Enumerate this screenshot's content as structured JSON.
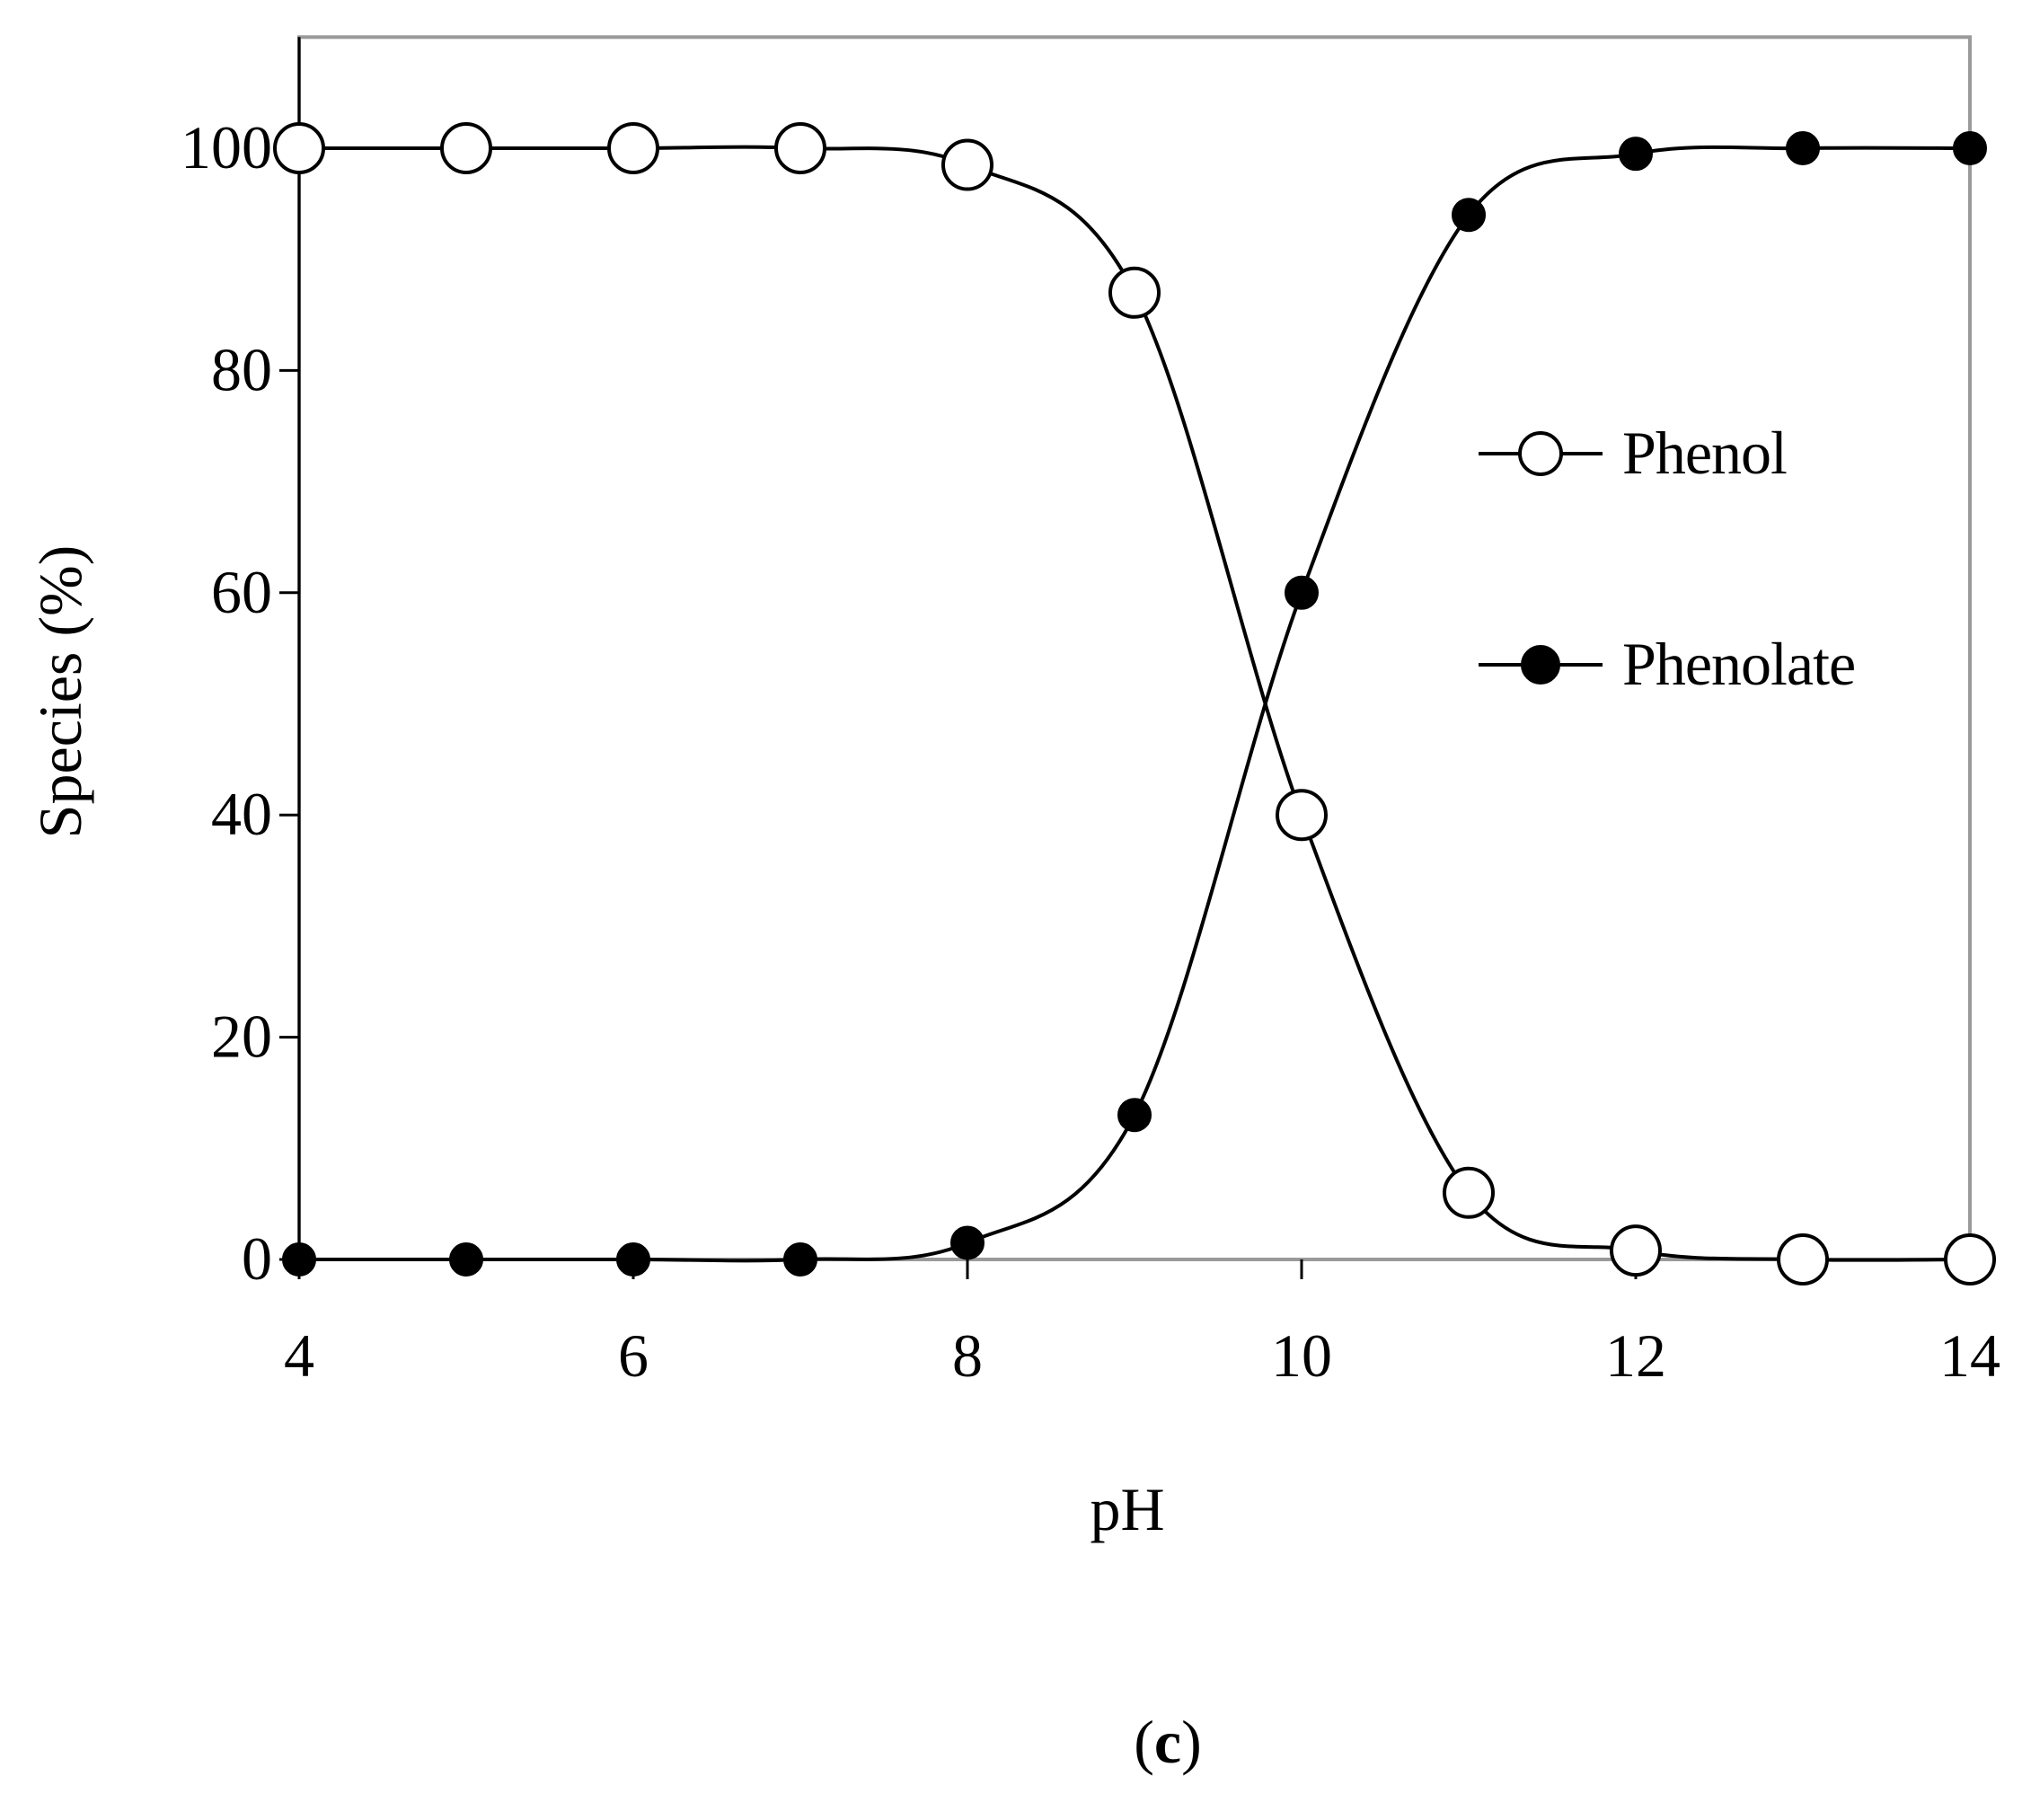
{
  "panel_label_prefix": "(",
  "panel_label_letter": "c",
  "panel_label_suffix": ")",
  "chart_data": {
    "type": "line",
    "title": "",
    "xlabel": "pH",
    "ylabel": "Species (%)",
    "xlim": [
      4,
      14
    ],
    "ylim": [
      0,
      110
    ],
    "x_ticks": [
      4,
      6,
      8,
      10,
      12,
      14
    ],
    "y_ticks": [
      0,
      20,
      40,
      60,
      80,
      100
    ],
    "legend_position": "right-middle",
    "grid": false,
    "series": [
      {
        "name": "Phenol",
        "marker": "open-circle",
        "color": "#000000",
        "points": [
          {
            "x": 4,
            "y": 100
          },
          {
            "x": 5,
            "y": 100
          },
          {
            "x": 6,
            "y": 100
          },
          {
            "x": 7,
            "y": 100
          },
          {
            "x": 8,
            "y": 98.5
          },
          {
            "x": 9,
            "y": 87
          },
          {
            "x": 10,
            "y": 40
          },
          {
            "x": 11,
            "y": 6
          },
          {
            "x": 12,
            "y": 0.8
          },
          {
            "x": 13,
            "y": 0
          },
          {
            "x": 14,
            "y": 0
          }
        ]
      },
      {
        "name": "Phenolate",
        "marker": "filled-circle",
        "color": "#000000",
        "points": [
          {
            "x": 4,
            "y": 0
          },
          {
            "x": 5,
            "y": 0
          },
          {
            "x": 6,
            "y": 0
          },
          {
            "x": 7,
            "y": 0
          },
          {
            "x": 8,
            "y": 1.5
          },
          {
            "x": 9,
            "y": 13
          },
          {
            "x": 10,
            "y": 60
          },
          {
            "x": 11,
            "y": 94
          },
          {
            "x": 12,
            "y": 99.5
          },
          {
            "x": 13,
            "y": 100
          },
          {
            "x": 14,
            "y": 100
          }
        ]
      }
    ]
  }
}
